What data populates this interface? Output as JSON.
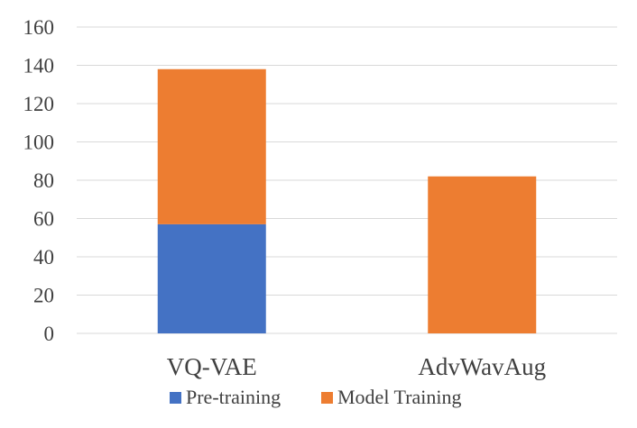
{
  "chart_data": {
    "type": "bar",
    "stacked": true,
    "categories": [
      "VQ-VAE",
      "AdvWavAug"
    ],
    "series": [
      {
        "name": "Pre-training",
        "values": [
          57,
          0
        ],
        "color": "#4472C4"
      },
      {
        "name": "Model Training",
        "values": [
          81,
          82
        ],
        "color": "#ED7D31"
      }
    ],
    "ylim": [
      0,
      160
    ],
    "yticks": [
      0,
      20,
      40,
      60,
      80,
      100,
      120,
      140,
      160
    ],
    "grid": true,
    "legend": "bottom"
  }
}
